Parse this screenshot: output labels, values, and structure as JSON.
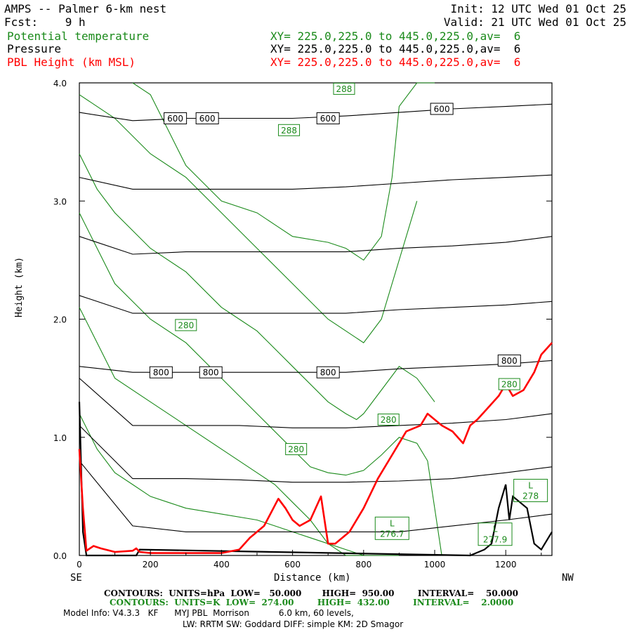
{
  "header": {
    "title": "AMPS -- Palmer 6-km nest",
    "init": "Init: 12 UTC Wed 01 Oct 25",
    "fcst": "Fcst:    9 h",
    "valid": "Valid: 21 UTC Wed 01 Oct 25",
    "fields": [
      {
        "name": "Potential temperature",
        "xy": "XY= 225.0,225.0 to 445.0,225.0,av=  6",
        "color": "#1a8a1a"
      },
      {
        "name": "Pressure",
        "xy": "XY= 225.0,225.0 to 445.0,225.0,av=  6",
        "color": "#000000"
      },
      {
        "name": "PBL Height (km MSL)",
        "xy": "XY= 225.0,225.0 to 445.0,225.0,av=  6",
        "color": "#ff0000"
      }
    ]
  },
  "chart_data": {
    "type": "line",
    "xlabel": "Distance (km)",
    "ylabel": "Height (km)",
    "xlim": [
      0,
      1330
    ],
    "ylim": [
      0,
      4.0
    ],
    "x_ticks": [
      "0",
      "200",
      "400",
      "600",
      "800",
      "1000",
      "1200"
    ],
    "y_ticks": [
      "0.0",
      "1.0",
      "2.0",
      "3.0",
      "4.0"
    ],
    "left_end_label": "SE",
    "right_end_label": "NW",
    "pbl_height": {
      "x": [
        0,
        10,
        20,
        40,
        60,
        100,
        150,
        160,
        170,
        200,
        300,
        400,
        450,
        480,
        520,
        560,
        580,
        600,
        620,
        650,
        680,
        700,
        720,
        760,
        800,
        840,
        880,
        920,
        960,
        980,
        1000,
        1020,
        1050,
        1080,
        1100,
        1120,
        1150,
        1180,
        1200,
        1220,
        1250,
        1280,
        1300,
        1330
      ],
      "y": [
        0.9,
        0.4,
        0.04,
        0.08,
        0.06,
        0.03,
        0.04,
        0.06,
        0.03,
        0.02,
        0.02,
        0.02,
        0.05,
        0.15,
        0.25,
        0.48,
        0.4,
        0.3,
        0.25,
        0.3,
        0.5,
        0.1,
        0.1,
        0.2,
        0.4,
        0.65,
        0.85,
        1.05,
        1.1,
        1.2,
        1.15,
        1.1,
        1.05,
        0.95,
        1.1,
        1.15,
        1.25,
        1.35,
        1.45,
        1.35,
        1.4,
        1.55,
        1.7,
        1.8
      ]
    },
    "terrain": {
      "x": [
        0,
        10,
        20,
        160,
        170,
        1100,
        1140,
        1160,
        1180,
        1200,
        1210,
        1220,
        1240,
        1260,
        1280,
        1300,
        1330
      ],
      "y": [
        1.3,
        0.2,
        0.0,
        0.0,
        0.05,
        0.0,
        0.05,
        0.1,
        0.4,
        0.6,
        0.3,
        0.5,
        0.45,
        0.4,
        0.1,
        0.05,
        0.2
      ]
    },
    "pressure_levels": [
      {
        "hPa": 950,
        "y": [
          0.8,
          0.25,
          0.2,
          0.2,
          0.2,
          0.2,
          0.2,
          0.25,
          0.3,
          0.35
        ]
      },
      {
        "hPa": 900,
        "y": [
          1.1,
          0.65,
          0.65,
          0.64,
          0.62,
          0.62,
          0.63,
          0.65,
          0.7,
          0.75
        ]
      },
      {
        "hPa": 850,
        "y": [
          1.5,
          1.1,
          1.1,
          1.1,
          1.08,
          1.08,
          1.1,
          1.12,
          1.15,
          1.2
        ]
      },
      {
        "hPa": 800,
        "y": [
          1.6,
          1.55,
          1.55,
          1.55,
          1.55,
          1.55,
          1.58,
          1.6,
          1.62,
          1.65
        ]
      },
      {
        "hPa": 750,
        "y": [
          2.2,
          2.05,
          2.05,
          2.05,
          2.05,
          2.05,
          2.08,
          2.1,
          2.12,
          2.15
        ]
      },
      {
        "hPa": 700,
        "y": [
          2.7,
          2.55,
          2.57,
          2.57,
          2.57,
          2.57,
          2.6,
          2.62,
          2.65,
          2.7
        ]
      },
      {
        "hPa": 650,
        "y": [
          3.2,
          3.1,
          3.1,
          3.1,
          3.1,
          3.12,
          3.15,
          3.18,
          3.2,
          3.22
        ]
      },
      {
        "hPa": 600,
        "y": [
          3.75,
          3.68,
          3.7,
          3.7,
          3.7,
          3.72,
          3.75,
          3.78,
          3.8,
          3.82
        ]
      }
    ],
    "pressure_x": [
      0,
      150,
      300,
      450,
      600,
      750,
      900,
      1050,
      1200,
      1330
    ],
    "pressure_labels": [
      {
        "text": "600",
        "x": 270,
        "y": 3.7
      },
      {
        "text": "600",
        "x": 360,
        "y": 3.7
      },
      {
        "text": "600",
        "x": 700,
        "y": 3.7
      },
      {
        "text": "600",
        "x": 1020,
        "y": 3.78
      },
      {
        "text": "800",
        "x": 230,
        "y": 1.55
      },
      {
        "text": "800",
        "x": 370,
        "y": 1.55
      },
      {
        "text": "800",
        "x": 700,
        "y": 1.55
      },
      {
        "text": "800",
        "x": 1210,
        "y": 1.65
      }
    ],
    "theta_lines": [
      {
        "x": [
          0,
          50,
          100,
          150,
          200,
          250,
          300,
          400,
          500,
          550,
          600,
          650,
          700,
          750,
          800,
          850,
          900
        ],
        "y": [
          1.2,
          0.9,
          0.7,
          0.6,
          0.5,
          0.45,
          0.4,
          0.35,
          0.3,
          0.25,
          0.2,
          0.15,
          0.1,
          0.05,
          0.0,
          0.0,
          0.0
        ]
      },
      {
        "x": [
          0,
          50,
          100,
          200,
          300,
          400,
          500,
          550,
          600,
          650,
          700,
          750,
          800,
          820
        ],
        "y": [
          2.1,
          1.8,
          1.5,
          1.3,
          1.1,
          0.9,
          0.7,
          0.6,
          0.45,
          0.3,
          0.1,
          0.0,
          0.0,
          0.0
        ]
      },
      {
        "x": [
          0,
          50,
          100,
          200,
          300,
          400,
          500,
          600,
          650,
          700,
          750,
          800,
          850,
          900,
          950,
          980,
          1000,
          1020
        ],
        "y": [
          2.9,
          2.6,
          2.3,
          2.0,
          1.8,
          1.5,
          1.2,
          0.9,
          0.75,
          0.7,
          0.68,
          0.72,
          0.85,
          1.0,
          0.95,
          0.8,
          0.4,
          0.0
        ]
      },
      {
        "x": [
          0,
          50,
          100,
          200,
          300,
          400,
          450,
          500,
          600,
          700,
          750,
          780,
          800,
          850,
          900,
          950,
          1000
        ],
        "y": [
          3.4,
          3.1,
          2.9,
          2.6,
          2.4,
          2.1,
          2.0,
          1.9,
          1.6,
          1.3,
          1.2,
          1.15,
          1.2,
          1.4,
          1.6,
          1.5,
          1.3
        ]
      },
      {
        "x": [
          0,
          100,
          200,
          300,
          400,
          500,
          600,
          700,
          800,
          850,
          900,
          950
        ],
        "y": [
          3.9,
          3.7,
          3.4,
          3.2,
          2.9,
          2.6,
          2.3,
          2.0,
          1.8,
          2.0,
          2.5,
          3.0
        ]
      },
      {
        "x": [
          150,
          200,
          250,
          300,
          400,
          500,
          550,
          600,
          700,
          750,
          800,
          850,
          880,
          900,
          950,
          1000
        ],
        "y": [
          4.0,
          3.9,
          3.6,
          3.3,
          3.0,
          2.9,
          2.8,
          2.7,
          2.65,
          2.6,
          2.5,
          2.7,
          3.2,
          3.8,
          4.0,
          4.0
        ]
      }
    ],
    "theta_labels": [
      {
        "text": "288",
        "x": 745,
        "y": 3.95
      },
      {
        "text": "288",
        "x": 590,
        "y": 3.6
      },
      {
        "text": "280",
        "x": 300,
        "y": 1.95
      },
      {
        "text": "280",
        "x": 870,
        "y": 1.15
      },
      {
        "text": "280",
        "x": 610,
        "y": 0.9
      },
      {
        "text": "280",
        "x": 1210,
        "y": 1.45
      }
    ],
    "lows": [
      {
        "text": "L",
        "value": "276.7",
        "x": 880,
        "y": 0.23
      },
      {
        "text": "L",
        "value": "277.9",
        "x": 1170,
        "y": 0.18
      },
      {
        "text": "L",
        "value": "278",
        "x": 1270,
        "y": 0.55
      }
    ]
  },
  "footer": {
    "pressure_contours": "CONTOURS:  UNITS=hPa  LOW=   50.000       HIGH=  950.00        INTERVAL=    50.000",
    "theta_contours": "CONTOURS:  UNITS=K  LOW=  274.00        HIGH=  432.00        INTERVAL=    2.0000",
    "model_info": "Model Info: V4.3.3   KF      MYJ PBL  Morrison           6.0 km, 60 levels,",
    "physics": "LW: RRTM SW: Goddard DIFF: simple KM: 2D Smagor"
  }
}
